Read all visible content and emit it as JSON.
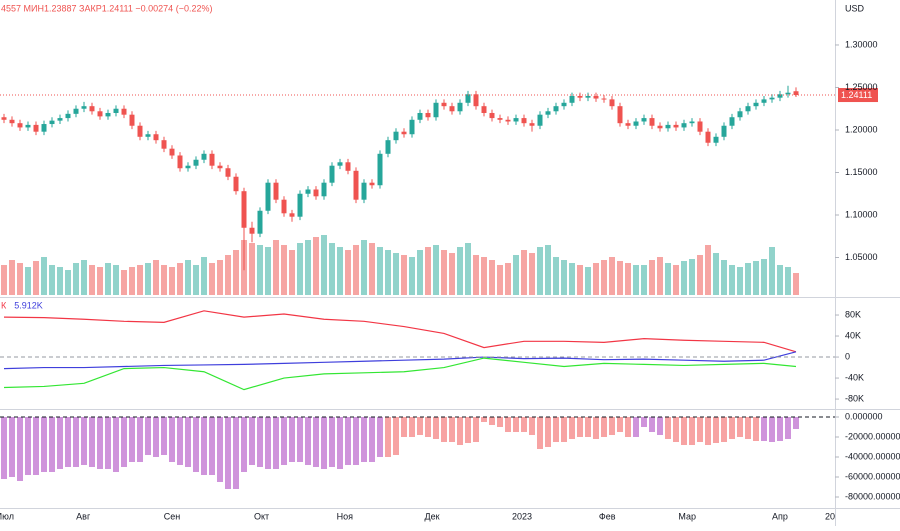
{
  "chart_data": [
    {
      "type": "candlestick",
      "currency": "USD",
      "header": "4557 МИН1.23887 ЗАКР1.24111 −0.00274 (−0.22%)",
      "last_price": 1.24111,
      "last_price_label": "1.24111",
      "up_color": "#26a69a",
      "down_color": "#ef5350",
      "xlim": [
        -0.5,
        103.875
      ],
      "xticks": [
        {
          "value": 0.1,
          "label": "Июл"
        },
        {
          "value": 9.9,
          "label": "Авг"
        },
        {
          "value": 21,
          "label": "Сен"
        },
        {
          "value": 32.2,
          "label": "Окт"
        },
        {
          "value": 42.6,
          "label": "Ноя"
        },
        {
          "value": 53.5,
          "label": "Дек"
        },
        {
          "value": 64.75,
          "label": "2023"
        },
        {
          "value": 75.4,
          "label": "Фев"
        },
        {
          "value": 85.4,
          "label": "Мар"
        },
        {
          "value": 97,
          "label": "Апр"
        },
        {
          "value": 103.25,
          "label": "20"
        }
      ],
      "ylim": [
        1.0059,
        1.3529
      ],
      "yticks": [
        {
          "value": 1.3,
          "label": "1.30000"
        },
        {
          "value": 1.25,
          "label": "1.25000"
        },
        {
          "value": 1.2,
          "label": "1.20000"
        },
        {
          "value": 1.15,
          "label": "1.15000"
        },
        {
          "value": 1.1,
          "label": "1.10000"
        },
        {
          "value": 1.05,
          "label": "1.05000"
        }
      ],
      "open": [
        1.215,
        1.212,
        1.208,
        1.203,
        1.206,
        1.198,
        1.207,
        1.211,
        1.214,
        1.219,
        1.225,
        1.228,
        1.222,
        1.216,
        1.22,
        1.225,
        1.218,
        1.205,
        1.192,
        1.195,
        1.188,
        1.178,
        1.17,
        1.155,
        1.158,
        1.165,
        1.172,
        1.158,
        1.155,
        1.145,
        1.128,
        1.085,
        1.078,
        1.105,
        1.138,
        1.118,
        1.102,
        1.098,
        1.125,
        1.13,
        1.122,
        1.138,
        1.158,
        1.162,
        1.152,
        1.118,
        1.138,
        1.135,
        1.172,
        1.188,
        1.198,
        1.195,
        1.212,
        1.22,
        1.215,
        1.232,
        1.228,
        1.222,
        1.232,
        1.242,
        1.228,
        1.22,
        1.214,
        1.212,
        1.21,
        1.214,
        1.208,
        1.205,
        1.218,
        1.222,
        1.228,
        1.232,
        1.24,
        1.238,
        1.24,
        1.237,
        1.236,
        1.228,
        1.208,
        1.205,
        1.21,
        1.214,
        1.205,
        1.202,
        1.206,
        1.203,
        1.208,
        1.21,
        1.198,
        1.185,
        1.192,
        1.205,
        1.215,
        1.222,
        1.228,
        1.232,
        1.236,
        1.238,
        1.242,
        1.24557
      ],
      "high": [
        1.219,
        1.216,
        1.212,
        1.21,
        1.21,
        1.211,
        1.215,
        1.218,
        1.223,
        1.229,
        1.233,
        1.232,
        1.226,
        1.224,
        1.229,
        1.229,
        1.222,
        1.209,
        1.199,
        1.199,
        1.192,
        1.182,
        1.174,
        1.162,
        1.169,
        1.176,
        1.176,
        1.162,
        1.159,
        1.149,
        1.132,
        1.092,
        1.109,
        1.142,
        1.142,
        1.122,
        1.106,
        1.129,
        1.134,
        1.134,
        1.142,
        1.162,
        1.166,
        1.166,
        1.156,
        1.142,
        1.142,
        1.176,
        1.192,
        1.202,
        1.202,
        1.216,
        1.224,
        1.224,
        1.236,
        1.236,
        1.232,
        1.236,
        1.246,
        1.246,
        1.232,
        1.224,
        1.218,
        1.216,
        1.218,
        1.218,
        1.212,
        1.222,
        1.226,
        1.232,
        1.236,
        1.244,
        1.244,
        1.244,
        1.244,
        1.241,
        1.24,
        1.232,
        1.212,
        1.214,
        1.218,
        1.218,
        1.209,
        1.21,
        1.21,
        1.212,
        1.214,
        1.214,
        1.202,
        1.196,
        1.209,
        1.219,
        1.226,
        1.232,
        1.236,
        1.24,
        1.242,
        1.246,
        1.252,
        1.2501
      ],
      "low": [
        1.208,
        1.204,
        1.199,
        1.199,
        1.194,
        1.194,
        1.203,
        1.207,
        1.21,
        1.215,
        1.221,
        1.218,
        1.212,
        1.212,
        1.216,
        1.214,
        1.201,
        1.188,
        1.188,
        1.184,
        1.174,
        1.166,
        1.151,
        1.151,
        1.154,
        1.161,
        1.154,
        1.151,
        1.141,
        1.124,
        1.035,
        1.068,
        1.074,
        1.101,
        1.114,
        1.098,
        1.092,
        1.094,
        1.121,
        1.118,
        1.118,
        1.134,
        1.154,
        1.148,
        1.114,
        1.114,
        1.131,
        1.131,
        1.168,
        1.184,
        1.191,
        1.191,
        1.208,
        1.211,
        1.211,
        1.224,
        1.218,
        1.218,
        1.228,
        1.224,
        1.216,
        1.21,
        1.208,
        1.206,
        1.206,
        1.204,
        1.198,
        1.201,
        1.214,
        1.218,
        1.224,
        1.228,
        1.234,
        1.234,
        1.233,
        1.232,
        1.224,
        1.204,
        1.201,
        1.201,
        1.206,
        1.201,
        1.198,
        1.198,
        1.199,
        1.199,
        1.204,
        1.194,
        1.181,
        1.181,
        1.188,
        1.201,
        1.211,
        1.218,
        1.224,
        1.228,
        1.232,
        1.234,
        1.238,
        1.23887
      ],
      "close": [
        1.212,
        1.208,
        1.203,
        1.206,
        1.198,
        1.207,
        1.211,
        1.214,
        1.219,
        1.225,
        1.228,
        1.222,
        1.216,
        1.22,
        1.225,
        1.218,
        1.205,
        1.192,
        1.195,
        1.188,
        1.178,
        1.17,
        1.155,
        1.158,
        1.165,
        1.172,
        1.158,
        1.155,
        1.145,
        1.128,
        1.085,
        1.078,
        1.105,
        1.138,
        1.118,
        1.102,
        1.098,
        1.125,
        1.13,
        1.122,
        1.138,
        1.158,
        1.162,
        1.152,
        1.118,
        1.138,
        1.135,
        1.172,
        1.188,
        1.198,
        1.195,
        1.212,
        1.22,
        1.215,
        1.232,
        1.228,
        1.222,
        1.232,
        1.242,
        1.228,
        1.22,
        1.214,
        1.212,
        1.21,
        1.214,
        1.208,
        1.205,
        1.218,
        1.222,
        1.228,
        1.232,
        1.24,
        1.238,
        1.24,
        1.237,
        1.236,
        1.228,
        1.208,
        1.205,
        1.21,
        1.214,
        1.205,
        1.202,
        1.206,
        1.203,
        1.208,
        1.21,
        1.198,
        1.185,
        1.192,
        1.205,
        1.215,
        1.222,
        1.228,
        1.232,
        1.236,
        1.238,
        1.242,
        1.24385,
        1.24111
      ],
      "volume": {
        "up_color": "#91d3cb",
        "down_color": "#f6a5a3",
        "lim": [
          0,
          100
        ],
        "values": [
          30,
          35,
          32,
          28,
          34,
          38,
          30,
          28,
          25,
          32,
          35,
          30,
          28,
          32,
          30,
          25,
          28,
          30,
          32,
          35,
          30,
          28,
          32,
          35,
          30,
          38,
          32,
          35,
          40,
          45,
          55,
          52,
          50,
          48,
          55,
          50,
          45,
          52,
          55,
          58,
          60,
          52,
          48,
          45,
          50,
          55,
          52,
          48,
          45,
          42,
          40,
          38,
          45,
          48,
          50,
          45,
          42,
          48,
          52,
          40,
          38,
          35,
          30,
          32,
          40,
          45,
          42,
          48,
          50,
          38,
          35,
          32,
          30,
          28,
          32,
          35,
          38,
          34,
          32,
          30,
          30,
          35,
          38,
          32,
          30,
          34,
          36,
          40,
          50,
          42,
          35,
          30,
          28,
          32,
          34,
          36,
          48,
          30,
          28,
          22
        ]
      }
    },
    {
      "type": "line",
      "ylim": [
        -97000,
        108600
      ],
      "yticks": [
        {
          "value": 80000,
          "label": "80K"
        },
        {
          "value": 40000,
          "label": "40K"
        },
        0,
        {
          "value": -40000,
          "label": "-40K"
        },
        {
          "value": -80000,
          "label": "-80K"
        }
      ],
      "x": [
        0,
        5,
        10,
        15,
        20,
        25,
        30,
        35,
        40,
        45,
        50,
        55,
        60,
        65,
        70,
        75,
        80,
        85,
        90,
        95,
        99
      ],
      "series": [
        {
          "name": "К",
          "color": "#f23645",
          "values": [
            76000,
            75000,
            72000,
            68000,
            66000,
            88000,
            76000,
            82000,
            72000,
            68000,
            58000,
            45000,
            18000,
            30000,
            30000,
            28000,
            35000,
            32000,
            30000,
            28000,
            10000
          ]
        },
        {
          "name": "5.912K",
          "color": "#3f3fdc",
          "values": [
            -22000,
            -20000,
            -20000,
            -18000,
            -16000,
            -15000,
            -14000,
            -12000,
            -10000,
            -8000,
            -6000,
            -4000,
            0,
            -3000,
            -2000,
            -5000,
            -4000,
            -6000,
            -8000,
            -6000,
            10000
          ]
        },
        {
          "color": "#33e633",
          "values": [
            -58000,
            -56000,
            -50000,
            -22000,
            -20000,
            -28000,
            -62000,
            -40000,
            -32000,
            -30000,
            -28000,
            -20000,
            -2000,
            -10000,
            -18000,
            -12000,
            -14000,
            -16000,
            -14000,
            -12000,
            -18000
          ]
        }
      ]
    },
    {
      "type": "bar",
      "ylim": [
        -91000,
        7000
      ],
      "yticks": [
        {
          "value": 0,
          "label": "0.000000"
        },
        {
          "value": -20000,
          "label": "-20000.000000"
        },
        {
          "value": -40000,
          "label": "-40000.000000"
        },
        {
          "value": -60000,
          "label": "-60000.000000"
        },
        {
          "value": -80000,
          "label": "-80000.000000"
        }
      ],
      "values": [
        -62000,
        -60000,
        -64000,
        -58000,
        -58000,
        -55000,
        -55000,
        -52000,
        -50000,
        -50000,
        -48000,
        -50000,
        -52000,
        -52000,
        -55000,
        -50000,
        -45000,
        -45000,
        -38000,
        -40000,
        -38000,
        -45000,
        -48000,
        -50000,
        -55000,
        -58000,
        -58000,
        -65000,
        -72000,
        -72000,
        -55000,
        -48000,
        -50000,
        -52000,
        -52000,
        -48000,
        -45000,
        -45000,
        -48000,
        -50000,
        -52000,
        -50000,
        -52000,
        -48000,
        -48000,
        -45000,
        -45000,
        -40000,
        -40000,
        -38000,
        -20000,
        -20000,
        -18000,
        -20000,
        -22000,
        -25000,
        -25000,
        -28000,
        -26000,
        -25000,
        -5000,
        -8000,
        -10000,
        -15000,
        -15000,
        -15000,
        -18000,
        -32000,
        -30000,
        -25000,
        -25000,
        -22000,
        -20000,
        -20000,
        -22000,
        -20000,
        -18000,
        -15000,
        -20000,
        -20000,
        -10000,
        -15000,
        -18000,
        -22000,
        -25000,
        -28000,
        -28000,
        -25000,
        -28000,
        -26000,
        -25000,
        -22000,
        -20000,
        -22000,
        -24000,
        -24000,
        -25000,
        -24000,
        -22000,
        -12000
      ],
      "colors": [
        "#cf94db",
        "#cf94db",
        "#cf94db",
        "#cf94db",
        "#cf94db",
        "#cf94db",
        "#cf94db",
        "#cf94db",
        "#cf94db",
        "#cf94db",
        "#cf94db",
        "#cf94db",
        "#cf94db",
        "#cf94db",
        "#cf94db",
        "#cf94db",
        "#cf94db",
        "#cf94db",
        "#cf94db",
        "#cf94db",
        "#cf94db",
        "#cf94db",
        "#cf94db",
        "#cf94db",
        "#cf94db",
        "#cf94db",
        "#cf94db",
        "#cf94db",
        "#cf94db",
        "#cf94db",
        "#cf94db",
        "#cf94db",
        "#cf94db",
        "#cf94db",
        "#cf94db",
        "#cf94db",
        "#cf94db",
        "#cf94db",
        "#cf94db",
        "#cf94db",
        "#cf94db",
        "#cf94db",
        "#cf94db",
        "#cf94db",
        "#cf94db",
        "#cf94db",
        "#cf94db",
        "#cf94db",
        "#f7a3a3",
        "#f7a3a3",
        "#f7a3a3",
        "#f7a3a3",
        "#f7a3a3",
        "#f7a3a3",
        "#f7a3a3",
        "#f7a3a3",
        "#f7a3a3",
        "#f7a3a3",
        "#f7a3a3",
        "#f7a3a3",
        "#f7a3a3",
        "#f7a3a3",
        "#f7a3a3",
        "#f7a3a3",
        "#f7a3a3",
        "#f7a3a3",
        "#f7a3a3",
        "#f7a3a3",
        "#f7a3a3",
        "#f7a3a3",
        "#f7a3a3",
        "#f7a3a3",
        "#f7a3a3",
        "#f7a3a3",
        "#f7a3a3",
        "#f7a3a3",
        "#f7a3a3",
        "#f7a3a3",
        "#f7a3a3",
        "#cf94db",
        "#cf94db",
        "#cf94db",
        "#cf94db",
        "#f7a3a3",
        "#f7a3a3",
        "#f7a3a3",
        "#f7a3a3",
        "#f7a3a3",
        "#f7a3a3",
        "#f7a3a3",
        "#f7a3a3",
        "#f7a3a3",
        "#f7a3a3",
        "#f7a3a3",
        "#f7a3a3",
        "#cf94db",
        "#cf94db",
        "#cf94db",
        "#cf94db",
        "#cf94db"
      ]
    }
  ]
}
